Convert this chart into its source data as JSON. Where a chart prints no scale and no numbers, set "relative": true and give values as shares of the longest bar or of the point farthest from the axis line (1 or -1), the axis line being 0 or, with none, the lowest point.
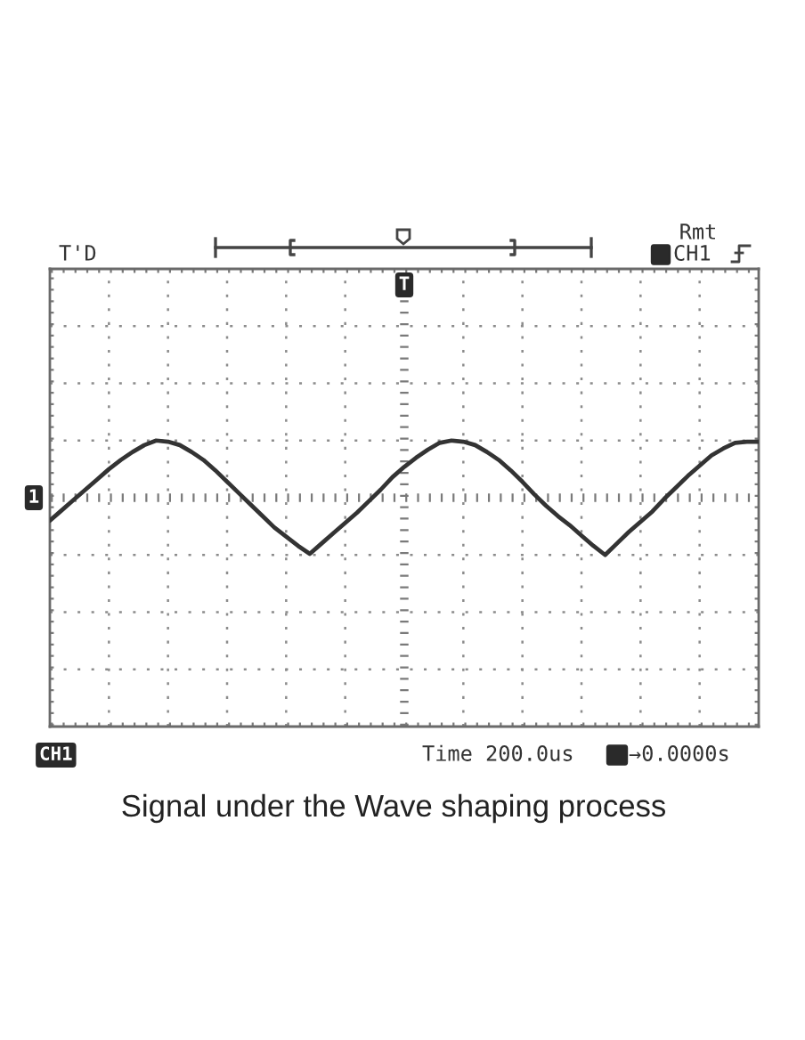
{
  "chart_data": {
    "type": "line",
    "title": "Signal under the Wave shaping process",
    "annotations": [
      "T'D",
      "Rmt",
      "CH1",
      "T",
      "CH1",
      "Time 200.0us",
      "→0.0000s"
    ],
    "relative": true,
    "grid": true,
    "color": "#333333",
    "ref_lines": [
      {
        "axis": "y",
        "value": 0.5,
        "label": "1",
        "line_style": "dotted"
      }
    ],
    "categories": [
      null,
      null,
      null,
      null,
      null,
      null,
      null,
      null,
      null,
      null,
      null,
      null,
      null,
      null,
      null,
      null,
      null,
      null,
      null,
      null,
      null,
      null,
      null,
      null,
      null,
      null,
      null,
      null,
      null,
      null,
      null,
      null,
      null,
      null,
      null,
      null,
      null,
      null,
      null,
      null,
      null,
      null,
      null,
      null,
      null,
      null,
      null,
      null,
      null,
      null,
      null,
      null,
      null,
      null,
      null,
      null,
      null,
      null,
      null,
      null,
      null
    ],
    "values": [
      0.3,
      0.39,
      0.48,
      0.57,
      0.66,
      0.75,
      0.83,
      0.9,
      0.96,
      1.0,
      0.99,
      0.96,
      0.9,
      0.83,
      0.74,
      0.64,
      0.54,
      0.44,
      0.34,
      0.24,
      0.16,
      0.08,
      0.01,
      0.1,
      0.19,
      0.28,
      0.37,
      0.47,
      0.57,
      0.68,
      0.77,
      0.85,
      0.92,
      0.98,
      1.0,
      0.99,
      0.96,
      0.9,
      0.83,
      0.74,
      0.64,
      0.53,
      0.43,
      0.34,
      0.26,
      0.17,
      0.08,
      0.0,
      0.1,
      0.2,
      0.29,
      0.38,
      0.49,
      0.59,
      0.69,
      0.78,
      0.87,
      0.93,
      0.98,
      0.99,
      0.99
    ]
  }
}
